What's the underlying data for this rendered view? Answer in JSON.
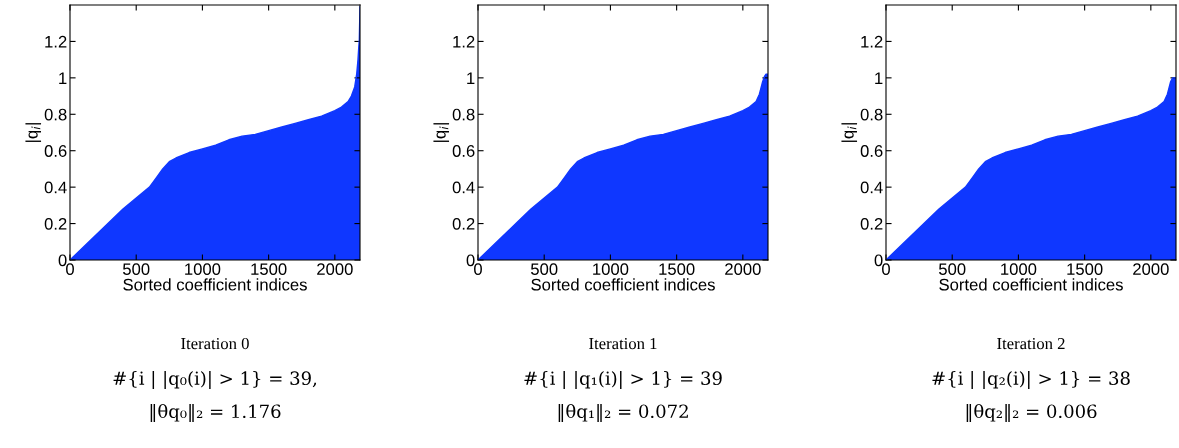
{
  "chart_data": [
    {
      "type": "area",
      "title": "Iteration 0",
      "xlabel": "Sorted coefficient indices",
      "ylabel": "|q$_{i}$|",
      "annotations": [
        "#{i | |q₀(i)| > 1} = 39,",
        "‖θq₀‖₂ = 1.176"
      ],
      "x": [
        0,
        100,
        200,
        300,
        400,
        500,
        600,
        650,
        700,
        750,
        800,
        900,
        1000,
        1100,
        1200,
        1300,
        1400,
        1500,
        1600,
        1700,
        1800,
        1900,
        2000,
        2050,
        2100,
        2125,
        2150,
        2165,
        2175,
        2180,
        2185,
        2190
      ],
      "series": [
        {
          "color": "#0f37ff",
          "values": [
            0,
            0.07,
            0.14,
            0.21,
            0.28,
            0.34,
            0.4,
            0.45,
            0.5,
            0.54,
            0.56,
            0.59,
            0.61,
            0.63,
            0.66,
            0.68,
            0.69,
            0.71,
            0.73,
            0.75,
            0.77,
            0.79,
            0.82,
            0.84,
            0.87,
            0.9,
            0.95,
            1.02,
            1.1,
            1.16,
            1.21,
            1.39
          ]
        }
      ],
      "xlim": [
        0,
        2190
      ],
      "ylim": [
        0,
        1.4
      ],
      "xticks": [
        0,
        500,
        1000,
        1500,
        2000
      ],
      "yticks": [
        0,
        0.2,
        0.4,
        0.6,
        0.8,
        1,
        1.2
      ]
    },
    {
      "type": "area",
      "title": "Iteration 1",
      "xlabel": "Sorted coefficient indices",
      "ylabel": "|q$_{i}$|",
      "annotations": [
        "#{i | |q₁(i)| > 1} = 39",
        "‖θq₁‖₂ = 0.072"
      ],
      "x": [
        0,
        100,
        200,
        300,
        400,
        500,
        600,
        650,
        700,
        750,
        800,
        900,
        1000,
        1100,
        1200,
        1300,
        1400,
        1500,
        1600,
        1700,
        1800,
        1900,
        2000,
        2050,
        2100,
        2125,
        2150,
        2165,
        2175,
        2180,
        2185,
        2190
      ],
      "series": [
        {
          "color": "#0f37ff",
          "values": [
            0,
            0.07,
            0.14,
            0.21,
            0.28,
            0.34,
            0.4,
            0.45,
            0.5,
            0.54,
            0.56,
            0.59,
            0.61,
            0.63,
            0.66,
            0.68,
            0.69,
            0.71,
            0.73,
            0.75,
            0.77,
            0.79,
            0.82,
            0.84,
            0.87,
            0.91,
            0.98,
            1.01,
            1.02,
            1.02,
            1.02,
            1.02
          ]
        }
      ],
      "xlim": [
        0,
        2190
      ],
      "ylim": [
        0,
        1.4
      ],
      "xticks": [
        0,
        500,
        1000,
        1500,
        2000
      ],
      "yticks": [
        0,
        0.2,
        0.4,
        0.6,
        0.8,
        1,
        1.2
      ]
    },
    {
      "type": "area",
      "title": "Iteration 2",
      "xlabel": "Sorted coefficient indices",
      "ylabel": "|q$_{i}$|",
      "annotations": [
        "#{i | |q₂(i)| > 1} = 38",
        "‖θq₂‖₂ = 0.006"
      ],
      "x": [
        0,
        100,
        200,
        300,
        400,
        500,
        600,
        650,
        700,
        750,
        800,
        900,
        1000,
        1100,
        1200,
        1300,
        1400,
        1500,
        1600,
        1700,
        1800,
        1900,
        2000,
        2050,
        2100,
        2125,
        2150,
        2165,
        2175,
        2180,
        2185,
        2190
      ],
      "series": [
        {
          "color": "#0f37ff",
          "values": [
            0,
            0.07,
            0.14,
            0.21,
            0.28,
            0.34,
            0.4,
            0.45,
            0.5,
            0.54,
            0.56,
            0.59,
            0.61,
            0.63,
            0.66,
            0.68,
            0.69,
            0.71,
            0.73,
            0.75,
            0.77,
            0.79,
            0.82,
            0.84,
            0.87,
            0.91,
            0.98,
            1.0,
            1.0,
            1.0,
            1.0,
            1.0
          ]
        }
      ],
      "xlim": [
        0,
        2190
      ],
      "ylim": [
        0,
        1.4
      ],
      "xticks": [
        0,
        500,
        1000,
        1500,
        2000
      ],
      "yticks": [
        0,
        0.2,
        0.4,
        0.6,
        0.8,
        1,
        1.2
      ]
    }
  ]
}
